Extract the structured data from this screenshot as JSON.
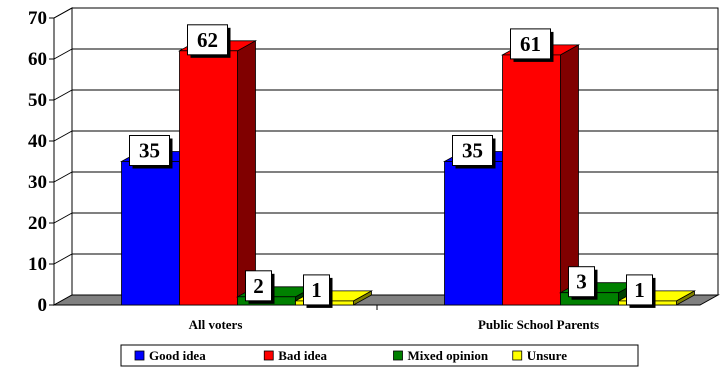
{
  "chart_data": {
    "type": "bar",
    "categories": [
      "All voters",
      "Public School Parents"
    ],
    "series": [
      {
        "name": "Good idea",
        "values": [
          35,
          35
        ],
        "color": "#0000ff",
        "side_color": "#000080"
      },
      {
        "name": "Bad idea",
        "values": [
          62,
          61
        ],
        "color": "#ff0000",
        "side_color": "#800000"
      },
      {
        "name": "Mixed opinion",
        "values": [
          2,
          3
        ],
        "color": "#008000",
        "side_color": "#004000"
      },
      {
        "name": "Unsure",
        "values": [
          1,
          1
        ],
        "color": "#ffff00",
        "side_color": "#808000"
      }
    ],
    "ylim": [
      0,
      70
    ],
    "yticks": [
      0,
      10,
      20,
      30,
      40,
      50,
      60,
      70
    ],
    "grid": true,
    "three_d": true,
    "data_labels": true,
    "legend_position": "bottom",
    "title": "",
    "xlabel": "",
    "ylabel": ""
  }
}
